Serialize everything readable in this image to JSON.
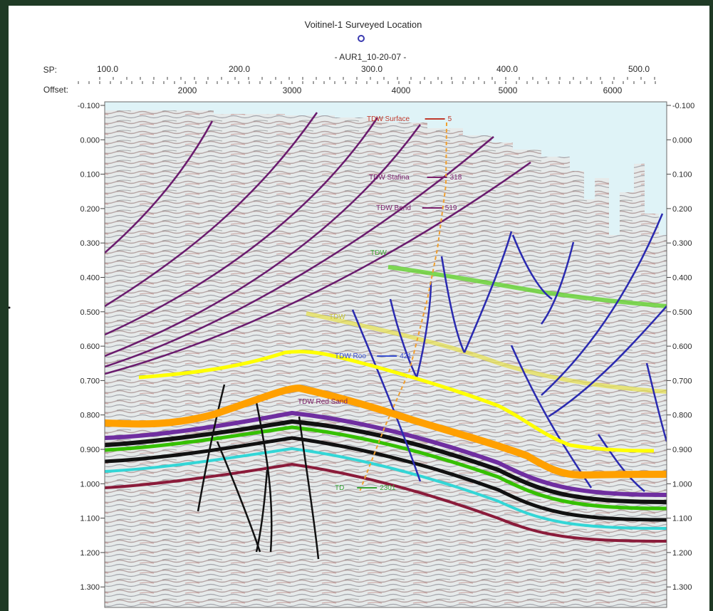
{
  "title": "Voitinel-1 Surveyed Location",
  "line_name": "- AUR1_10-20-07 -",
  "sp_label": "SP:",
  "offset_label": "Offset:",
  "sp_ticks": [
    "100.0",
    "200.0",
    "300.0",
    "400.0",
    "500.0"
  ],
  "offset_ticks": [
    "2000",
    "3000",
    "4000",
    "5000",
    "6000"
  ],
  "time_ticks": [
    "-0.100",
    "0.000",
    "0.100",
    "0.200",
    "0.300",
    "0.400",
    "0.500",
    "0.600",
    "0.700",
    "0.800",
    "0.900",
    "1.000",
    "1.100",
    "1.200",
    "1.300"
  ],
  "tdw_labels": [
    {
      "text": "TDW Surface",
      "value": "5",
      "color": "#c0392b"
    },
    {
      "text": "TDW Stafina",
      "value": "318",
      "color": "#7b1f6b"
    },
    {
      "text": "TDW Bend",
      "value": "519",
      "color": "#7b1f6b"
    },
    {
      "text": "TDW",
      "value": "",
      "color": "#3aa537"
    },
    {
      "text": "TDW",
      "value": "",
      "color": "#c9c43a"
    },
    {
      "text": "TDW Roo",
      "value": "421",
      "color": "#3a4fd0"
    },
    {
      "text": "TDW Red Sand",
      "value": "",
      "color": "#7b1f6b"
    },
    {
      "text": "TD",
      "value": "2301",
      "color": "#3aa537"
    }
  ],
  "colors": {
    "faults_shallow": "#6a1b6e",
    "faults_deep": "#2a2ab0",
    "faults_black": "#111111",
    "horizon_yellow": "#ffff00",
    "horizon_orange": "#ffa000",
    "horizon_green": "#35c000",
    "horizon_purple": "#6f2ea0",
    "horizon_cyan": "#33d6d6"
  }
}
